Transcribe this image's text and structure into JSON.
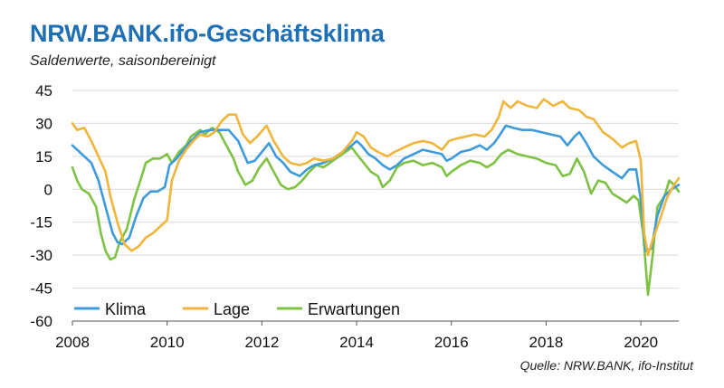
{
  "title": "NRW.BANK.ifo-Geschäftsklima",
  "subtitle": "Saldenwerte, saisonbereinigt",
  "source": "Quelle: NRW.BANK, ifo-Institut",
  "chart_data": {
    "type": "line",
    "title": "NRW.BANK.ifo-Geschäftsklima",
    "subtitle": "Saldenwerte, saisonbereinigt",
    "xlabel": "",
    "ylabel": "",
    "xlim": [
      2008,
      2020.8
    ],
    "ylim": [
      -60,
      45
    ],
    "yticks": [
      45,
      30,
      15,
      0,
      -15,
      -30,
      -45,
      -60
    ],
    "xticks": [
      2008,
      2010,
      2012,
      2014,
      2016,
      2018,
      2020
    ],
    "grid": "horizontal",
    "legend_position": "bottom-left",
    "series": [
      {
        "name": "Klima",
        "color": "#3d9bdc",
        "points": [
          [
            2008.0,
            20
          ],
          [
            2008.2,
            16
          ],
          [
            2008.4,
            12
          ],
          [
            2008.55,
            4
          ],
          [
            2008.7,
            -8
          ],
          [
            2008.85,
            -20
          ],
          [
            2008.95,
            -24
          ],
          [
            2009.05,
            -25
          ],
          [
            2009.2,
            -22
          ],
          [
            2009.35,
            -12
          ],
          [
            2009.5,
            -4
          ],
          [
            2009.65,
            -1
          ],
          [
            2009.8,
            -1
          ],
          [
            2009.95,
            1
          ],
          [
            2010.05,
            11
          ],
          [
            2010.2,
            14
          ],
          [
            2010.35,
            18
          ],
          [
            2010.5,
            22
          ],
          [
            2010.7,
            26
          ],
          [
            2010.9,
            27
          ],
          [
            2011.1,
            27
          ],
          [
            2011.3,
            27
          ],
          [
            2011.5,
            22
          ],
          [
            2011.6,
            17
          ],
          [
            2011.7,
            12
          ],
          [
            2011.85,
            13
          ],
          [
            2012.0,
            17
          ],
          [
            2012.15,
            21
          ],
          [
            2012.3,
            15
          ],
          [
            2012.45,
            12
          ],
          [
            2012.6,
            8
          ],
          [
            2012.8,
            6
          ],
          [
            2012.95,
            9
          ],
          [
            2013.1,
            11
          ],
          [
            2013.3,
            12
          ],
          [
            2013.5,
            14
          ],
          [
            2013.7,
            17
          ],
          [
            2013.9,
            20
          ],
          [
            2014.0,
            22
          ],
          [
            2014.1,
            20
          ],
          [
            2014.25,
            16
          ],
          [
            2014.4,
            14
          ],
          [
            2014.55,
            11
          ],
          [
            2014.7,
            9
          ],
          [
            2014.85,
            11
          ],
          [
            2015.0,
            14
          ],
          [
            2015.2,
            16
          ],
          [
            2015.4,
            18
          ],
          [
            2015.6,
            17
          ],
          [
            2015.8,
            16
          ],
          [
            2015.9,
            13
          ],
          [
            2016.0,
            14
          ],
          [
            2016.2,
            17
          ],
          [
            2016.4,
            18
          ],
          [
            2016.6,
            20
          ],
          [
            2016.75,
            18
          ],
          [
            2016.9,
            21
          ],
          [
            2017.0,
            24
          ],
          [
            2017.15,
            29
          ],
          [
            2017.3,
            28
          ],
          [
            2017.5,
            27
          ],
          [
            2017.7,
            27
          ],
          [
            2017.9,
            26
          ],
          [
            2018.1,
            25
          ],
          [
            2018.3,
            24
          ],
          [
            2018.45,
            20
          ],
          [
            2018.6,
            24
          ],
          [
            2018.7,
            26
          ],
          [
            2018.85,
            21
          ],
          [
            2019.0,
            15
          ],
          [
            2019.2,
            11
          ],
          [
            2019.4,
            8
          ],
          [
            2019.6,
            5
          ],
          [
            2019.75,
            9
          ],
          [
            2019.9,
            9
          ],
          [
            2020.0,
            -5
          ],
          [
            2020.1,
            -28
          ],
          [
            2020.22,
            -27
          ],
          [
            2020.35,
            -12
          ],
          [
            2020.5,
            -3
          ],
          [
            2020.65,
            0
          ],
          [
            2020.8,
            2
          ]
        ]
      },
      {
        "name": "Lage",
        "color": "#f0b53a",
        "points": [
          [
            2008.0,
            30
          ],
          [
            2008.1,
            27
          ],
          [
            2008.25,
            28
          ],
          [
            2008.4,
            22
          ],
          [
            2008.55,
            15
          ],
          [
            2008.7,
            8
          ],
          [
            2008.8,
            -3
          ],
          [
            2008.95,
            -15
          ],
          [
            2009.1,
            -25
          ],
          [
            2009.25,
            -28
          ],
          [
            2009.4,
            -26
          ],
          [
            2009.55,
            -22
          ],
          [
            2009.7,
            -20
          ],
          [
            2009.85,
            -17
          ],
          [
            2010.0,
            -14
          ],
          [
            2010.1,
            4
          ],
          [
            2010.25,
            13
          ],
          [
            2010.4,
            18
          ],
          [
            2010.55,
            22
          ],
          [
            2010.7,
            25
          ],
          [
            2010.85,
            24
          ],
          [
            2011.0,
            26
          ],
          [
            2011.15,
            31
          ],
          [
            2011.3,
            34
          ],
          [
            2011.45,
            34
          ],
          [
            2011.6,
            25
          ],
          [
            2011.75,
            21
          ],
          [
            2011.9,
            24
          ],
          [
            2012.1,
            29
          ],
          [
            2012.25,
            22
          ],
          [
            2012.45,
            15
          ],
          [
            2012.6,
            12
          ],
          [
            2012.8,
            11
          ],
          [
            2012.95,
            12
          ],
          [
            2013.1,
            14
          ],
          [
            2013.3,
            13
          ],
          [
            2013.5,
            14
          ],
          [
            2013.7,
            17
          ],
          [
            2013.9,
            22
          ],
          [
            2014.0,
            26
          ],
          [
            2014.15,
            24
          ],
          [
            2014.3,
            19
          ],
          [
            2014.45,
            17
          ],
          [
            2014.65,
            15
          ],
          [
            2014.8,
            17
          ],
          [
            2015.0,
            19
          ],
          [
            2015.2,
            21
          ],
          [
            2015.4,
            22
          ],
          [
            2015.6,
            21
          ],
          [
            2015.8,
            18
          ],
          [
            2015.95,
            22
          ],
          [
            2016.1,
            23
          ],
          [
            2016.3,
            24
          ],
          [
            2016.5,
            25
          ],
          [
            2016.7,
            24
          ],
          [
            2016.85,
            27
          ],
          [
            2017.0,
            33
          ],
          [
            2017.1,
            40
          ],
          [
            2017.25,
            37
          ],
          [
            2017.4,
            40
          ],
          [
            2017.6,
            38
          ],
          [
            2017.8,
            37
          ],
          [
            2017.95,
            41
          ],
          [
            2018.15,
            38
          ],
          [
            2018.35,
            40
          ],
          [
            2018.5,
            37
          ],
          [
            2018.7,
            36
          ],
          [
            2018.85,
            33
          ],
          [
            2019.0,
            32
          ],
          [
            2019.2,
            26
          ],
          [
            2019.4,
            23
          ],
          [
            2019.6,
            19
          ],
          [
            2019.75,
            21
          ],
          [
            2019.9,
            22
          ],
          [
            2020.0,
            13
          ],
          [
            2020.07,
            -20
          ],
          [
            2020.15,
            -30
          ],
          [
            2020.25,
            -23
          ],
          [
            2020.4,
            -14
          ],
          [
            2020.55,
            -4
          ],
          [
            2020.7,
            2
          ],
          [
            2020.8,
            5
          ]
        ]
      },
      {
        "name": "Erwartungen",
        "color": "#7dc243",
        "points": [
          [
            2008.0,
            10
          ],
          [
            2008.1,
            4
          ],
          [
            2008.2,
            0
          ],
          [
            2008.35,
            -2
          ],
          [
            2008.5,
            -8
          ],
          [
            2008.6,
            -20
          ],
          [
            2008.7,
            -28
          ],
          [
            2008.8,
            -32
          ],
          [
            2008.9,
            -31
          ],
          [
            2009.0,
            -24
          ],
          [
            2009.15,
            -18
          ],
          [
            2009.3,
            -5
          ],
          [
            2009.45,
            5
          ],
          [
            2009.55,
            12
          ],
          [
            2009.7,
            14
          ],
          [
            2009.85,
            14
          ],
          [
            2010.0,
            16
          ],
          [
            2010.1,
            12
          ],
          [
            2010.25,
            17
          ],
          [
            2010.4,
            20
          ],
          [
            2010.5,
            24
          ],
          [
            2010.7,
            27
          ],
          [
            2010.8,
            25
          ],
          [
            2010.95,
            28
          ],
          [
            2011.1,
            26
          ],
          [
            2011.25,
            20
          ],
          [
            2011.4,
            14
          ],
          [
            2011.5,
            8
          ],
          [
            2011.65,
            2
          ],
          [
            2011.8,
            4
          ],
          [
            2011.95,
            10
          ],
          [
            2012.1,
            14
          ],
          [
            2012.25,
            8
          ],
          [
            2012.4,
            2
          ],
          [
            2012.55,
            0
          ],
          [
            2012.7,
            1
          ],
          [
            2012.85,
            4
          ],
          [
            2013.0,
            8
          ],
          [
            2013.15,
            11
          ],
          [
            2013.3,
            10
          ],
          [
            2013.5,
            13
          ],
          [
            2013.7,
            16
          ],
          [
            2013.9,
            19
          ],
          [
            2014.0,
            16
          ],
          [
            2014.15,
            12
          ],
          [
            2014.3,
            8
          ],
          [
            2014.45,
            6
          ],
          [
            2014.55,
            1
          ],
          [
            2014.7,
            4
          ],
          [
            2014.85,
            10
          ],
          [
            2015.0,
            12
          ],
          [
            2015.2,
            13
          ],
          [
            2015.4,
            11
          ],
          [
            2015.6,
            12
          ],
          [
            2015.8,
            10
          ],
          [
            2015.9,
            6
          ],
          [
            2016.0,
            8
          ],
          [
            2016.2,
            11
          ],
          [
            2016.4,
            13
          ],
          [
            2016.6,
            12
          ],
          [
            2016.75,
            10
          ],
          [
            2016.9,
            12
          ],
          [
            2017.05,
            16
          ],
          [
            2017.2,
            18
          ],
          [
            2017.4,
            16
          ],
          [
            2017.6,
            15
          ],
          [
            2017.8,
            14
          ],
          [
            2018.0,
            12
          ],
          [
            2018.2,
            11
          ],
          [
            2018.35,
            6
          ],
          [
            2018.5,
            7
          ],
          [
            2018.65,
            14
          ],
          [
            2018.8,
            8
          ],
          [
            2018.95,
            -2
          ],
          [
            2019.1,
            4
          ],
          [
            2019.25,
            3
          ],
          [
            2019.4,
            -2
          ],
          [
            2019.55,
            -4
          ],
          [
            2019.7,
            -6
          ],
          [
            2019.85,
            -3
          ],
          [
            2019.95,
            -5
          ],
          [
            2020.05,
            -20
          ],
          [
            2020.15,
            -48
          ],
          [
            2020.25,
            -30
          ],
          [
            2020.35,
            -8
          ],
          [
            2020.5,
            -3
          ],
          [
            2020.6,
            4
          ],
          [
            2020.7,
            2
          ],
          [
            2020.8,
            -1
          ]
        ]
      }
    ]
  }
}
